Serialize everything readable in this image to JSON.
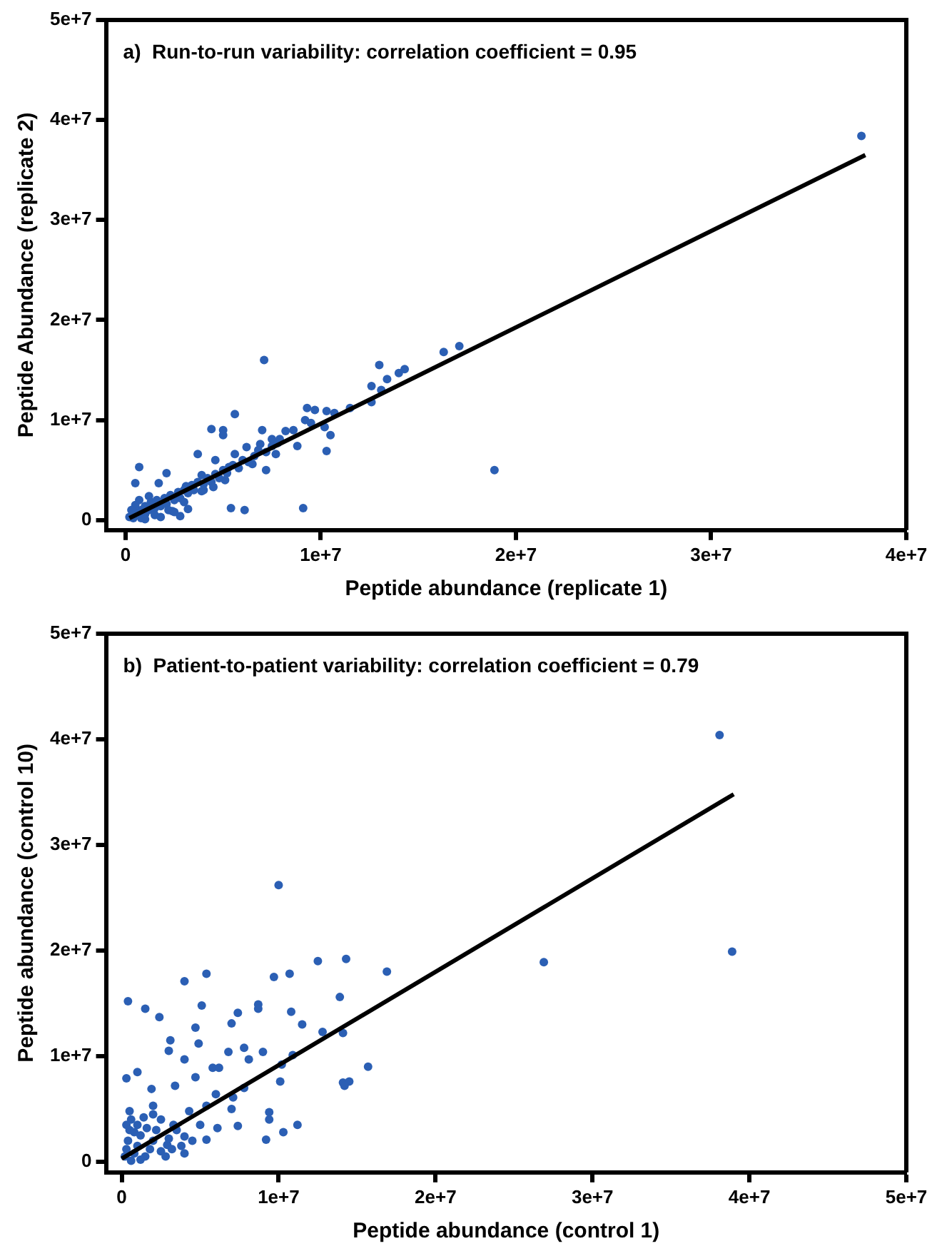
{
  "chart_data": [
    {
      "type": "scatter",
      "title": "a)  Run-to-run variability: correlation coefficient = 0.95",
      "xlabel": "Peptide abundance (replicate 1)",
      "ylabel": "Peptide Abundance (replicate 2)",
      "xlim": [
        -1000000.0,
        40000000.0
      ],
      "ylim": [
        -1000000.0,
        50000000.0
      ],
      "xticks": [
        0,
        {
          "value": 10000000.0,
          "label": "1e+7"
        },
        {
          "value": 20000000.0,
          "label": "2e+7"
        },
        {
          "value": 30000000.0,
          "label": "3e+7"
        },
        {
          "value": 40000000.0,
          "label": "4e+7"
        }
      ],
      "yticks": [
        0,
        {
          "value": 10000000.0,
          "label": "1e+7"
        },
        {
          "value": 20000000.0,
          "label": "2e+7"
        },
        {
          "value": 30000000.0,
          "label": "3e+7"
        },
        {
          "value": 40000000.0,
          "label": "4e+7"
        },
        {
          "value": 50000000.0,
          "label": "5e+7"
        }
      ],
      "series": [
        {
          "marker": "circle",
          "color": "#2b5fb4",
          "x": [
            37700000.0,
            18900000.0,
            7100000.0,
            16300000.0,
            17100000.0,
            13000000.0,
            14300000.0,
            14000000.0,
            13400000.0,
            12600000.0,
            13100000.0,
            12600000.0,
            11500000.0,
            9300000.0,
            9700000.0,
            10300000.0,
            10700000.0,
            9200000.0,
            9500000.0,
            10200000.0,
            10500000.0,
            10300000.0,
            5600000.0,
            4400000.0,
            5000000.0,
            5000000.0,
            7000000.0,
            8200000.0,
            8600000.0,
            8800000.0,
            7900000.0,
            7500000.0,
            6900000.0,
            6200000.0,
            5600000.0,
            7700000.0,
            7200000.0,
            3700000.0,
            4600000.0,
            5300000.0,
            6500000.0,
            700000.0,
            2100000.0,
            500000.0,
            1700000.0,
            9100000.0,
            5400000.0,
            6100000.0,
            2800000.0,
            2400000.0,
            3200000.0,
            3900000.0,
            3900000.0,
            5100000.0,
            3100000.0,
            200000.0,
            400000.0,
            500000.0,
            800000.0,
            1000000.0,
            1000000.0,
            1200000.0,
            1300000.0,
            1500000.0,
            1600000.0,
            1800000.0,
            2000000.0,
            2100000.0,
            2300000.0,
            2500000.0,
            2700000.0,
            2800000.0,
            3000000.0,
            3200000.0,
            3400000.0,
            3500000.0,
            3700000.0,
            4000000.0,
            4200000.0,
            4400000.0,
            4600000.0,
            4800000.0,
            5000000.0,
            5200000.0,
            5500000.0,
            5800000.0,
            6000000.0,
            6300000.0,
            6600000.0,
            6800000.0,
            7200000.0,
            7500000.0,
            7800000.0,
            800000.0,
            1500000.0,
            2200000.0,
            700000.0,
            500000.0,
            1200000.0,
            3000000.0,
            2500000.0,
            1800000.0,
            1000000.0,
            4000000.0,
            4500000.0,
            300000.0
          ],
          "values": [
            38400000.0,
            5000000.0,
            16000000.0,
            16800000.0,
            17400000.0,
            15500000.0,
            15100000.0,
            14700000.0,
            14100000.0,
            13400000.0,
            13000000.0,
            11800000.0,
            11200000.0,
            11200000.0,
            11000000.0,
            10900000.0,
            10700000.0,
            10000000.0,
            9700000.0,
            9300000.0,
            8500000.0,
            6900000.0,
            10600000.0,
            9100000.0,
            9000000.0,
            8500000.0,
            9000000.0,
            8900000.0,
            9000000.0,
            7400000.0,
            8100000.0,
            8100000.0,
            7600000.0,
            7300000.0,
            6600000.0,
            6600000.0,
            5000000.0,
            6600000.0,
            6000000.0,
            5300000.0,
            5600000.0,
            5300000.0,
            4700000.0,
            3700000.0,
            3700000.0,
            1200000.0,
            1200000.0,
            1000000.0,
            400000.0,
            900000.0,
            1100000.0,
            4500000.0,
            2900000.0,
            4000000.0,
            3400000.0,
            300000.0,
            200000.0,
            800000.0,
            1000000.0,
            600000.0,
            1400000.0,
            1000000.0,
            1800000.0,
            1200000.0,
            2000000.0,
            1400000.0,
            2200000.0,
            1600000.0,
            2500000.0,
            2000000.0,
            2800000.0,
            2200000.0,
            3000000.0,
            2700000.0,
            3500000.0,
            3000000.0,
            3800000.0,
            3600000.0,
            4200000.0,
            3800000.0,
            4600000.0,
            4200000.0,
            5000000.0,
            4700000.0,
            5500000.0,
            5200000.0,
            6000000.0,
            5800000.0,
            6400000.0,
            7000000.0,
            6800000.0,
            7400000.0,
            7700000.0,
            200000.0,
            500000.0,
            1000000.0,
            2000000.0,
            1500000.0,
            2400000.0,
            1800000.0,
            800000.0,
            300000.0,
            100000.0,
            3000000.0,
            3300000.0,
            1000000.0
          ]
        },
        {
          "type": "line",
          "marker": "none",
          "color": "#000000",
          "x": [
            200000.0,
            37900000.0
          ],
          "values": [
            200000.0,
            36500000.0
          ]
        }
      ]
    },
    {
      "type": "scatter",
      "title": "b)  Patient-to-patient variability: correlation coefficient = 0.79",
      "xlabel": "Peptide abundance (control 1)",
      "ylabel": "Peptide abundance (control 10)",
      "xlim": [
        -1000000.0,
        50000000.0
      ],
      "ylim": [
        -1000000.0,
        50000000.0
      ],
      "xticks": [
        0,
        {
          "value": 10000000.0,
          "label": "1e+7"
        },
        {
          "value": 20000000.0,
          "label": "2e+7"
        },
        {
          "value": 30000000.0,
          "label": "3e+7"
        },
        {
          "value": 40000000.0,
          "label": "4e+7"
        },
        {
          "value": 50000000.0,
          "label": "5e+7"
        }
      ],
      "yticks": [
        0,
        {
          "value": 10000000.0,
          "label": "1e+7"
        },
        {
          "value": 20000000.0,
          "label": "2e+7"
        },
        {
          "value": 30000000.0,
          "label": "3e+7"
        },
        {
          "value": 40000000.0,
          "label": "4e+7"
        },
        {
          "value": 50000000.0,
          "label": "5e+7"
        }
      ],
      "series": [
        {
          "marker": "circle",
          "color": "#2b5fb4",
          "x": [
            38100000.0,
            38900000.0,
            26900000.0,
            10000000.0,
            12500000.0,
            14300000.0,
            16900000.0,
            10700000.0,
            9700000.0,
            5400000.0,
            4000000.0,
            400000.0,
            1500000.0,
            2400000.0,
            5100000.0,
            7400000.0,
            8700000.0,
            8700000.0,
            13900000.0,
            10800000.0,
            7000000.0,
            4700000.0,
            11500000.0,
            12800000.0,
            14100000.0,
            3100000.0,
            4900000.0,
            3000000.0,
            4000000.0,
            6800000.0,
            7800000.0,
            9000000.0,
            8100000.0,
            5800000.0,
            6200000.0,
            4700000.0,
            1000000.0,
            300000.0,
            10900000.0,
            10200000.0,
            10100000.0,
            15700000.0,
            14100000.0,
            14500000.0,
            14200000.0,
            7800000.0,
            7100000.0,
            7000000.0,
            7400000.0,
            9400000.0,
            9400000.0,
            10300000.0,
            11200000.0,
            9200000.0,
            6000000.0,
            5400000.0,
            4300000.0,
            3400000.0,
            1900000.0,
            2000000.0,
            3300000.0,
            5000000.0,
            6100000.0,
            5400000.0,
            4000000.0,
            2900000.0,
            200000.0,
            300000.0,
            400000.0,
            500000.0,
            600000.0,
            500000.0,
            800000.0,
            1000000.0,
            1200000.0,
            1000000.0,
            1400000.0,
            1500000.0,
            1800000.0,
            2000000.0,
            2200000.0,
            2500000.0,
            2500000.0,
            2800000.0,
            3000000.0,
            3200000.0,
            1200000.0,
            600000.0,
            3500000.0,
            3800000.0,
            4000000.0,
            4500000.0,
            1600000.0,
            800000.0,
            300000.0,
            2000000.0
          ],
          "values": [
            40400000.0,
            19900000.0,
            18900000.0,
            26200000.0,
            19000000.0,
            19200000.0,
            18000000.0,
            17800000.0,
            17500000.0,
            17800000.0,
            17100000.0,
            15200000.0,
            14500000.0,
            13700000.0,
            14800000.0,
            14100000.0,
            14900000.0,
            14500000.0,
            15600000.0,
            14200000.0,
            13100000.0,
            12700000.0,
            13000000.0,
            12300000.0,
            12200000.0,
            11500000.0,
            11200000.0,
            10500000.0,
            9700000.0,
            10400000.0,
            10800000.0,
            10400000.0,
            9700000.0,
            8900000.0,
            8900000.0,
            8000000.0,
            8500000.0,
            7900000.0,
            10100000.0,
            9200000.0,
            7600000.0,
            9000000.0,
            7500000.0,
            7600000.0,
            7200000.0,
            7000000.0,
            6100000.0,
            5000000.0,
            3400000.0,
            4700000.0,
            4000000.0,
            2800000.0,
            3500000.0,
            2100000.0,
            6400000.0,
            5300000.0,
            4800000.0,
            7200000.0,
            6900000.0,
            5300000.0,
            3500000.0,
            3500000.0,
            3200000.0,
            2100000.0,
            2400000.0,
            1600000.0,
            500000.0,
            1200000.0,
            2000000.0,
            3000000.0,
            4000000.0,
            4800000.0,
            800000.0,
            1500000.0,
            2500000.0,
            3500000.0,
            4200000.0,
            500000.0,
            1200000.0,
            2000000.0,
            3000000.0,
            4000000.0,
            1000000.0,
            500000.0,
            2200000.0,
            1200000.0,
            200000.0,
            100000.0,
            3000000.0,
            1500000.0,
            800000.0,
            2000000.0,
            3200000.0,
            2800000.0,
            3500000.0,
            4500000.0
          ]
        },
        {
          "type": "line",
          "marker": "none",
          "color": "#000000",
          "x": [
            0.0,
            39000000.0
          ],
          "values": [
            300000.0,
            34800000.0
          ]
        }
      ]
    }
  ]
}
